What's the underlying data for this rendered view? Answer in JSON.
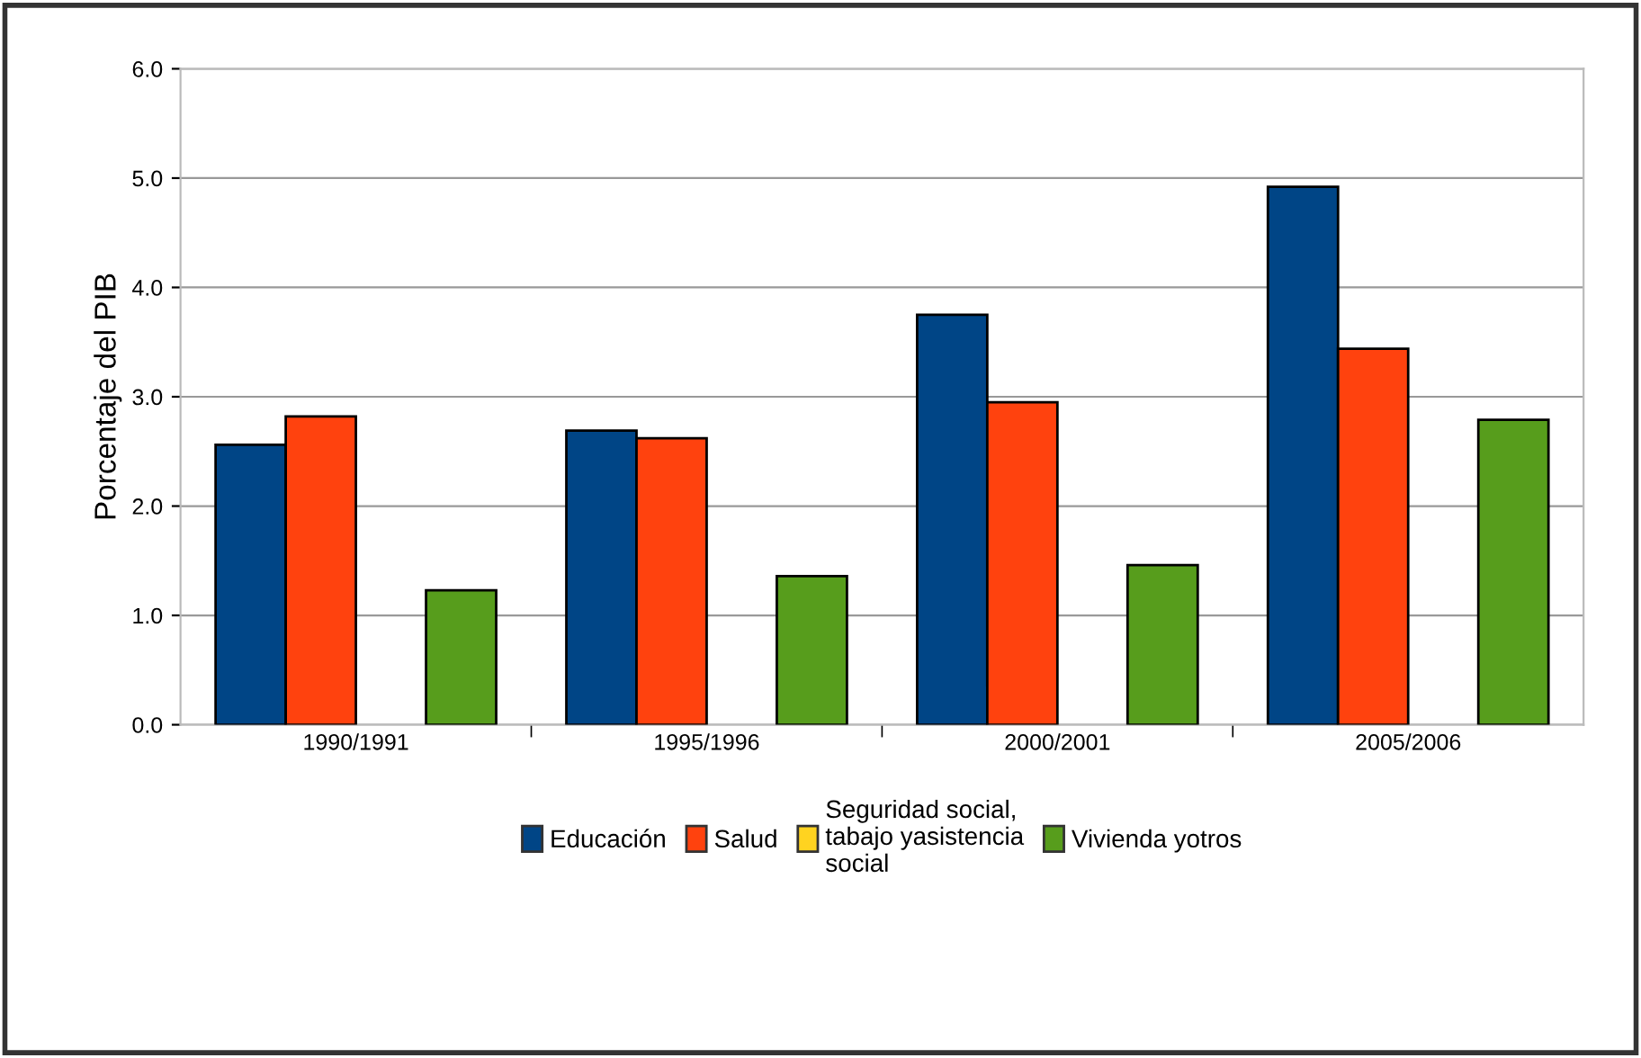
{
  "chart_data": {
    "type": "bar",
    "ylabel": "Porcentaje del PIB",
    "categories": [
      "1990/1991",
      "1995/1996",
      "2000/2001",
      "2005/2006"
    ],
    "series": [
      {
        "name": "Educación",
        "color": "#004586",
        "values": [
          2.56,
          2.69,
          3.75,
          4.92
        ]
      },
      {
        "name": "Salud",
        "color": "#ff420e",
        "values": [
          2.82,
          2.62,
          2.95,
          3.44
        ]
      },
      {
        "name": "Seguridad social,\ntabajo yasistencia\nsocial",
        "color": "#ffd320",
        "values": [
          null,
          null,
          null,
          null
        ]
      },
      {
        "name": "Vivienda yotros",
        "color": "#579d1c",
        "values": [
          1.23,
          1.36,
          1.46,
          2.79
        ]
      }
    ],
    "ylim": [
      0,
      6
    ],
    "yticks": [
      {
        "value": 0,
        "label": "0.0"
      },
      {
        "value": 1,
        "label": "1.0"
      },
      {
        "value": 2,
        "label": "2.0"
      },
      {
        "value": 3,
        "label": "3.0"
      },
      {
        "value": 4,
        "label": "4.0"
      },
      {
        "value": 5,
        "label": "5.0"
      },
      {
        "value": 6,
        "label": "6.0"
      }
    ],
    "grid": "y",
    "legend": "bottom"
  }
}
